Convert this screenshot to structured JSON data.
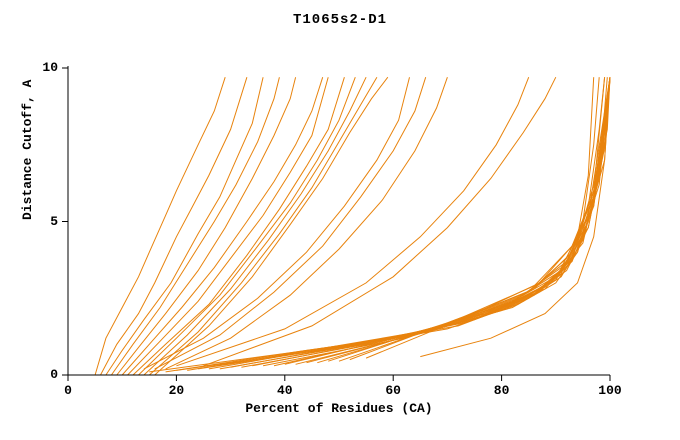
{
  "chart_data": {
    "type": "line",
    "title": "T1065s2-D1",
    "xlabel": "Percent of Residues (CA)",
    "ylabel": "Distance Cutoff, A",
    "xlim": [
      0,
      100
    ],
    "ylim": [
      0,
      10
    ],
    "x_ticks": [
      0,
      20,
      40,
      60,
      80,
      100
    ],
    "y_ticks": [
      0,
      5,
      10
    ],
    "grid": false,
    "legend": "none",
    "line_color": "#E8830D",
    "axis_color": "#000000",
    "series": [
      [
        [
          5,
          0
        ],
        [
          7,
          1.2
        ],
        [
          10,
          2.2
        ],
        [
          13,
          3.2
        ],
        [
          15,
          4
        ],
        [
          18,
          5.2
        ],
        [
          20,
          6
        ],
        [
          24,
          7.5
        ],
        [
          27,
          8.6
        ],
        [
          29,
          9.7
        ]
      ],
      [
        [
          6,
          0
        ],
        [
          9,
          1
        ],
        [
          13,
          2
        ],
        [
          16,
          3
        ],
        [
          20,
          4.5
        ],
        [
          23,
          5.5
        ],
        [
          26,
          6.5
        ],
        [
          30,
          8
        ],
        [
          33,
          9.7
        ]
      ],
      [
        [
          7,
          0
        ],
        [
          10,
          0.8
        ],
        [
          14,
          1.8
        ],
        [
          19,
          3
        ],
        [
          24,
          4.6
        ],
        [
          28,
          5.8
        ],
        [
          31,
          7
        ],
        [
          34,
          8.2
        ],
        [
          36,
          9.7
        ]
      ],
      [
        [
          8,
          0
        ],
        [
          12,
          1
        ],
        [
          17,
          2.2
        ],
        [
          22,
          3.6
        ],
        [
          27,
          5
        ],
        [
          31,
          6.2
        ],
        [
          35,
          7.6
        ],
        [
          38,
          9
        ],
        [
          39,
          9.7
        ]
      ],
      [
        [
          9,
          0
        ],
        [
          13,
          0.9
        ],
        [
          18,
          2
        ],
        [
          24,
          3.4
        ],
        [
          29,
          4.8
        ],
        [
          34,
          6.4
        ],
        [
          38,
          7.8
        ],
        [
          41,
          9
        ],
        [
          42,
          9.7
        ]
      ],
      [
        [
          10,
          0
        ],
        [
          15,
          1
        ],
        [
          21,
          2.2
        ],
        [
          27,
          3.5
        ],
        [
          33,
          5
        ],
        [
          38,
          6.3
        ],
        [
          42,
          7.5
        ],
        [
          45,
          8.6
        ],
        [
          47,
          9.7
        ]
      ],
      [
        [
          11,
          0
        ],
        [
          17,
          1.1
        ],
        [
          24,
          2.4
        ],
        [
          30,
          3.8
        ],
        [
          36,
          5.2
        ],
        [
          41,
          6.6
        ],
        [
          45,
          7.8
        ],
        [
          48,
          9.7
        ]
      ],
      [
        [
          12,
          0
        ],
        [
          18,
          1
        ],
        [
          26,
          2.3
        ],
        [
          33,
          3.9
        ],
        [
          39,
          5.4
        ],
        [
          44,
          6.8
        ],
        [
          48,
          8
        ],
        [
          51,
          9.7
        ]
      ],
      [
        [
          13,
          0
        ],
        [
          20,
          1.2
        ],
        [
          28,
          2.6
        ],
        [
          35,
          4.2
        ],
        [
          41,
          5.6
        ],
        [
          46,
          7
        ],
        [
          50,
          8.3
        ],
        [
          53,
          9.7
        ]
      ],
      [
        [
          14,
          0
        ],
        [
          22,
          1.3
        ],
        [
          30,
          2.8
        ],
        [
          37,
          4.4
        ],
        [
          43,
          5.9
        ],
        [
          48,
          7.3
        ],
        [
          52,
          8.6
        ],
        [
          55,
          9.7
        ]
      ],
      [
        [
          15,
          0
        ],
        [
          24,
          1.4
        ],
        [
          32,
          3
        ],
        [
          39,
          4.6
        ],
        [
          45,
          6.1
        ],
        [
          50,
          7.6
        ],
        [
          54,
          8.8
        ],
        [
          57,
          9.7
        ]
      ],
      [
        [
          16,
          0
        ],
        [
          26,
          1.6
        ],
        [
          34,
          3.2
        ],
        [
          41,
          4.9
        ],
        [
          47,
          6.4
        ],
        [
          52,
          7.9
        ],
        [
          56,
          9
        ],
        [
          59,
          9.7
        ]
      ],
      [
        [
          14,
          0.2
        ],
        [
          25,
          1.2
        ],
        [
          35,
          2.5
        ],
        [
          44,
          4
        ],
        [
          51,
          5.5
        ],
        [
          57,
          7
        ],
        [
          61,
          8.3
        ],
        [
          63,
          9.7
        ]
      ],
      [
        [
          16,
          0.2
        ],
        [
          28,
          1.3
        ],
        [
          38,
          2.7
        ],
        [
          47,
          4.2
        ],
        [
          54,
          5.8
        ],
        [
          60,
          7.3
        ],
        [
          64,
          8.6
        ],
        [
          66,
          9.7
        ]
      ],
      [
        [
          18,
          0.2
        ],
        [
          30,
          1.2
        ],
        [
          41,
          2.6
        ],
        [
          50,
          4.1
        ],
        [
          58,
          5.7
        ],
        [
          64,
          7.3
        ],
        [
          68,
          8.7
        ],
        [
          70,
          9.7
        ]
      ],
      [
        [
          20,
          0.3
        ],
        [
          40,
          1.5
        ],
        [
          55,
          3
        ],
        [
          65,
          4.5
        ],
        [
          73,
          6
        ],
        [
          79,
          7.5
        ],
        [
          83,
          8.8
        ],
        [
          85,
          9.7
        ]
      ],
      [
        [
          25,
          0.3
        ],
        [
          45,
          1.6
        ],
        [
          60,
          3.2
        ],
        [
          70,
          4.8
        ],
        [
          78,
          6.4
        ],
        [
          84,
          7.9
        ],
        [
          88,
          9
        ],
        [
          90,
          9.7
        ]
      ],
      [
        [
          15,
          0.1
        ],
        [
          40,
          0.7
        ],
        [
          60,
          1.2
        ],
        [
          75,
          1.9
        ],
        [
          85,
          2.6
        ],
        [
          91,
          3.3
        ],
        [
          94,
          4.5
        ],
        [
          96,
          6.5
        ],
        [
          97,
          9.7
        ]
      ],
      [
        [
          18,
          0.1
        ],
        [
          44,
          0.8
        ],
        [
          64,
          1.3
        ],
        [
          78,
          2
        ],
        [
          87,
          2.8
        ],
        [
          92,
          3.6
        ],
        [
          95,
          5
        ],
        [
          97,
          7.5
        ],
        [
          98,
          9.7
        ]
      ],
      [
        [
          20,
          0.15
        ],
        [
          46,
          0.8
        ],
        [
          66,
          1.4
        ],
        [
          80,
          2.1
        ],
        [
          88,
          2.9
        ],
        [
          93,
          3.8
        ],
        [
          96,
          5.5
        ],
        [
          98,
          8
        ],
        [
          99,
          9.7
        ]
      ],
      [
        [
          22,
          0.15
        ],
        [
          48,
          0.9
        ],
        [
          68,
          1.5
        ],
        [
          82,
          2.2
        ],
        [
          90,
          3
        ],
        [
          94,
          4
        ],
        [
          97,
          6
        ],
        [
          99,
          9.7
        ]
      ],
      [
        [
          24,
          0.2
        ],
        [
          50,
          0.9
        ],
        [
          70,
          1.5
        ],
        [
          83,
          2.3
        ],
        [
          91,
          3.2
        ],
        [
          95,
          4.4
        ],
        [
          98,
          6.5
        ],
        [
          99.5,
          9.7
        ]
      ],
      [
        [
          26,
          0.2
        ],
        [
          52,
          1
        ],
        [
          72,
          1.6
        ],
        [
          84,
          2.4
        ],
        [
          92,
          3.4
        ],
        [
          96,
          4.8
        ],
        [
          98.5,
          7
        ],
        [
          100,
          9.7
        ]
      ],
      [
        [
          28,
          0.2
        ],
        [
          54,
          1
        ],
        [
          73,
          1.7
        ],
        [
          85,
          2.5
        ],
        [
          92,
          3.5
        ],
        [
          96,
          5
        ],
        [
          99,
          7.5
        ],
        [
          100,
          9.7
        ]
      ],
      [
        [
          30,
          0.25
        ],
        [
          56,
          1.1
        ],
        [
          75,
          1.8
        ],
        [
          86,
          2.6
        ],
        [
          93,
          3.7
        ],
        [
          97,
          5.5
        ],
        [
          99.5,
          8.5
        ],
        [
          100,
          9.7
        ]
      ],
      [
        [
          32,
          0.25
        ],
        [
          58,
          1.1
        ],
        [
          76,
          1.9
        ],
        [
          87,
          2.7
        ],
        [
          93,
          3.8
        ],
        [
          97,
          5.8
        ],
        [
          100,
          9.7
        ]
      ],
      [
        [
          34,
          0.3
        ],
        [
          60,
          1.2
        ],
        [
          77,
          2
        ],
        [
          88,
          2.8
        ],
        [
          94,
          4
        ],
        [
          98,
          6.2
        ],
        [
          100,
          9.7
        ]
      ],
      [
        [
          36,
          0.3
        ],
        [
          62,
          1.2
        ],
        [
          79,
          2.1
        ],
        [
          89,
          3
        ],
        [
          95,
          4.3
        ],
        [
          98,
          6.6
        ],
        [
          100,
          9.7
        ]
      ],
      [
        [
          38,
          0.3
        ],
        [
          63,
          1.3
        ],
        [
          80,
          2.2
        ],
        [
          90,
          3.1
        ],
        [
          95,
          4.5
        ],
        [
          99,
          7
        ],
        [
          100,
          9.7
        ]
      ],
      [
        [
          40,
          0.35
        ],
        [
          65,
          1.4
        ],
        [
          81,
          2.3
        ],
        [
          90,
          3.2
        ],
        [
          96,
          4.8
        ],
        [
          99,
          7.4
        ],
        [
          100,
          9.7
        ]
      ],
      [
        [
          42,
          0.35
        ],
        [
          66,
          1.4
        ],
        [
          82,
          2.4
        ],
        [
          91,
          3.4
        ],
        [
          96,
          5
        ],
        [
          99.5,
          8
        ],
        [
          100,
          9.7
        ]
      ],
      [
        [
          44,
          0.4
        ],
        [
          68,
          1.5
        ],
        [
          83,
          2.5
        ],
        [
          91,
          3.5
        ],
        [
          96,
          5.2
        ],
        [
          100,
          9.7
        ]
      ],
      [
        [
          46,
          0.4
        ],
        [
          69,
          1.6
        ],
        [
          84,
          2.6
        ],
        [
          92,
          3.7
        ],
        [
          97,
          5.5
        ],
        [
          100,
          9.7
        ]
      ],
      [
        [
          48,
          0.45
        ],
        [
          70,
          1.7
        ],
        [
          85,
          2.7
        ],
        [
          92,
          3.8
        ],
        [
          97,
          5.8
        ],
        [
          100,
          9.7
        ]
      ],
      [
        [
          50,
          0.45
        ],
        [
          72,
          1.8
        ],
        [
          86,
          2.8
        ],
        [
          93,
          4
        ],
        [
          97,
          6
        ],
        [
          100,
          9.7
        ]
      ],
      [
        [
          52,
          0.5
        ],
        [
          73,
          1.9
        ],
        [
          86,
          2.9
        ],
        [
          93,
          4.2
        ],
        [
          98,
          6.4
        ],
        [
          100,
          9.7
        ]
      ],
      [
        [
          55,
          0.55
        ],
        [
          75,
          2
        ],
        [
          87,
          3
        ],
        [
          94,
          4.4
        ],
        [
          98,
          6.8
        ],
        [
          100,
          9.7
        ]
      ],
      [
        [
          65,
          0.6
        ],
        [
          78,
          1.2
        ],
        [
          88,
          2
        ],
        [
          94,
          3
        ],
        [
          97,
          4.5
        ],
        [
          99,
          7
        ],
        [
          100,
          9.7
        ]
      ]
    ]
  }
}
